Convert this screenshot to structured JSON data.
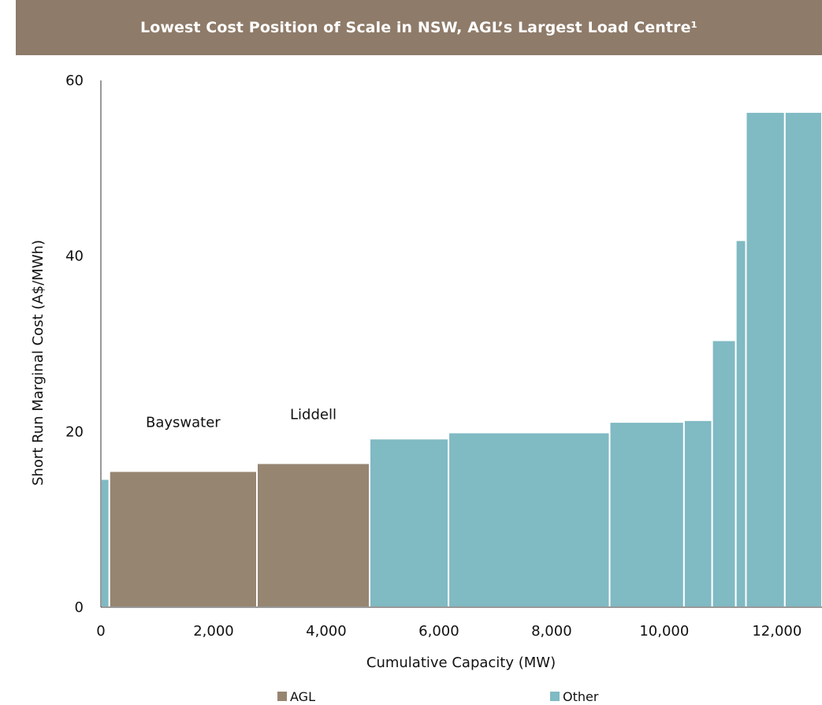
{
  "chart_data": {
    "type": "bar",
    "variant": "supply-curve (variable-width bars)",
    "title": "Lowest Cost Position of Scale in NSW, AGL’s Largest Load Centre¹",
    "xlabel": "Cumulative Capacity (MW)",
    "ylabel": "Short Run Marginal Cost (A$/MWh)",
    "xlim": [
      0,
      12800
    ],
    "ylim": [
      0,
      60
    ],
    "xticks": [
      0,
      2000,
      4000,
      6000,
      8000,
      10000,
      12000
    ],
    "xtick_labels": [
      "0",
      "2,000",
      "4,000",
      "6,000",
      "8,000",
      "10,000",
      "12,000"
    ],
    "yticks": [
      0,
      20,
      40,
      60
    ],
    "ytick_labels": [
      "0",
      "20",
      "40",
      "60"
    ],
    "series": [
      {
        "name": "AGL",
        "color": "#968571"
      },
      {
        "name": "Other",
        "color": "#80bac3"
      }
    ],
    "bars": [
      {
        "series": "Other",
        "x_start": 0,
        "x_end": 150,
        "value": 14.6
      },
      {
        "series": "AGL",
        "x_start": 150,
        "x_end": 2770,
        "value": 15.5,
        "label": "Bayswater"
      },
      {
        "series": "AGL",
        "x_start": 2770,
        "x_end": 4770,
        "value": 16.4,
        "label": "Liddell"
      },
      {
        "series": "Other",
        "x_start": 4770,
        "x_end": 6170,
        "value": 19.2
      },
      {
        "series": "Other",
        "x_start": 6170,
        "x_end": 9030,
        "value": 19.9
      },
      {
        "series": "Other",
        "x_start": 9030,
        "x_end": 10350,
        "value": 21.1
      },
      {
        "series": "Other",
        "x_start": 10350,
        "x_end": 10850,
        "value": 21.3
      },
      {
        "series": "Other",
        "x_start": 10850,
        "x_end": 11270,
        "value": 30.4
      },
      {
        "series": "Other",
        "x_start": 11270,
        "x_end": 11450,
        "value": 41.8
      },
      {
        "series": "Other",
        "x_start": 11450,
        "x_end": 12140,
        "value": 56.4
      },
      {
        "series": "Other",
        "x_start": 12140,
        "x_end": 12800,
        "value": 56.4
      }
    ],
    "legend_position": "bottom",
    "grid": false
  }
}
